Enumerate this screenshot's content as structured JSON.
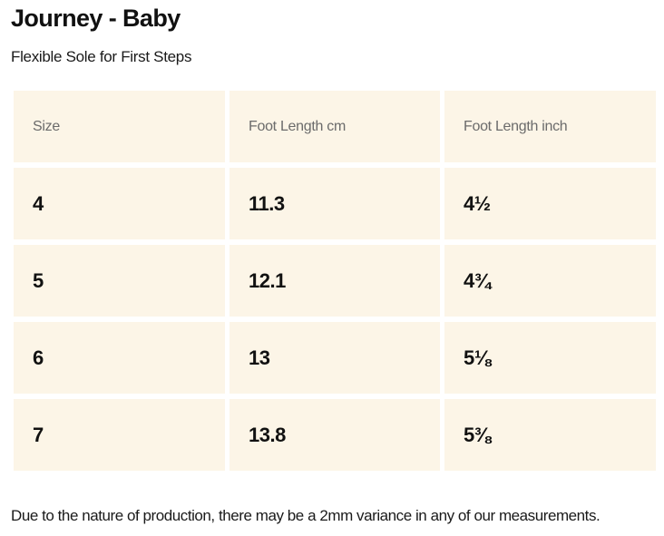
{
  "header": {
    "title": "Journey - Baby",
    "subtitle": "Flexible Sole for First Steps"
  },
  "size_table": {
    "columns": [
      "Size",
      "Foot Length cm",
      "Foot Length inch"
    ],
    "rows": [
      [
        "4",
        "11.3",
        "4½"
      ],
      [
        "5",
        "12.1",
        "4¾"
      ],
      [
        "6",
        "13",
        "5⅛"
      ],
      [
        "7",
        "13.8",
        "5⅜"
      ]
    ]
  },
  "footer": {
    "note": "Due to the nature of production, there may be a 2mm variance in any of our measurements."
  },
  "colors": {
    "cell_background": "#fcf5e7",
    "header_text": "#6b6b6b",
    "body_text": "#111111"
  }
}
